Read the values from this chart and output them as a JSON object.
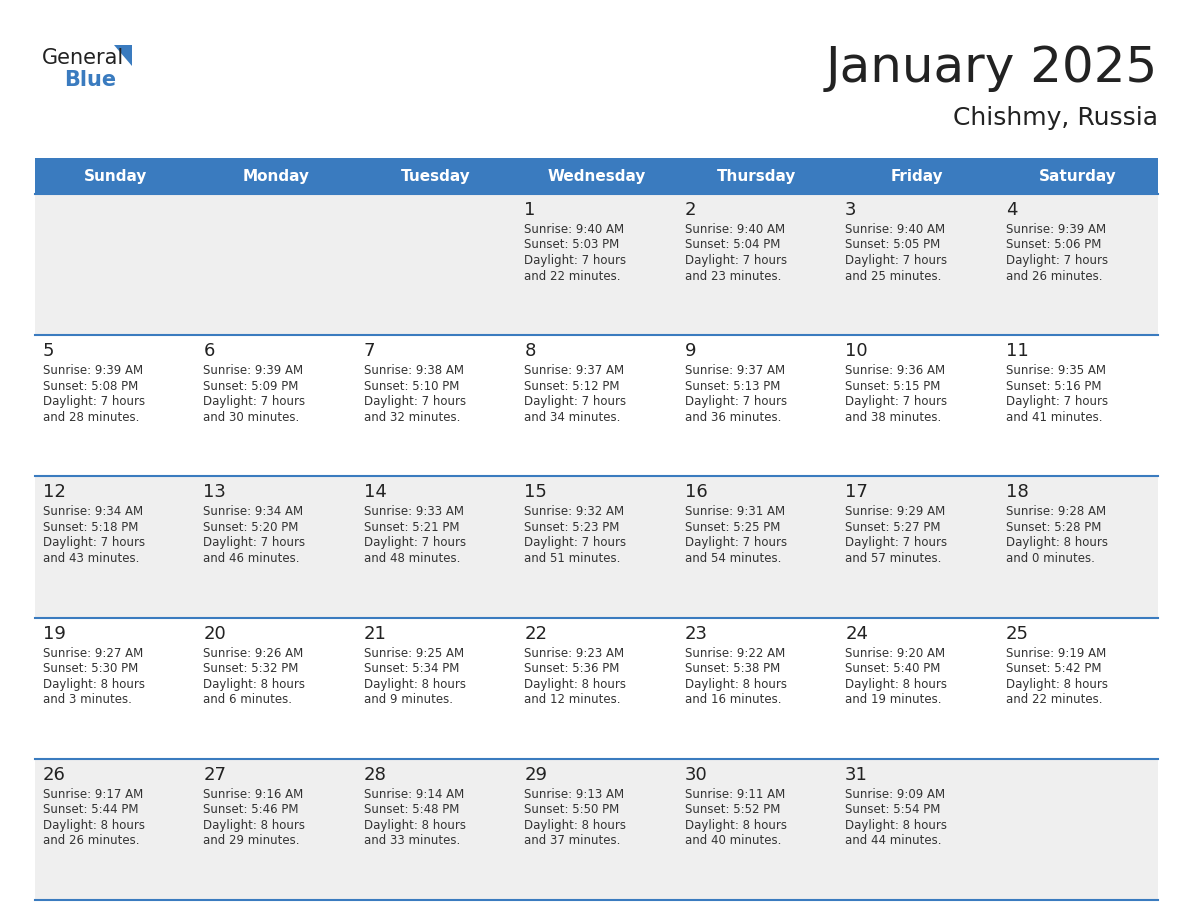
{
  "title": "January 2025",
  "subtitle": "Chishmy, Russia",
  "header_color": "#3a7bbf",
  "header_text_color": "#ffffff",
  "day_names": [
    "Sunday",
    "Monday",
    "Tuesday",
    "Wednesday",
    "Thursday",
    "Friday",
    "Saturday"
  ],
  "bg_color": "#ffffff",
  "cell_bg_even": "#efefef",
  "cell_bg_odd": "#ffffff",
  "row_line_color": "#3a7bbf",
  "text_color": "#333333",
  "day_num_color": "#222222",
  "logo_general_color": "#222222",
  "logo_blue_color": "#3a7bbf",
  "logo_triangle_color": "#3a7bbf",
  "title_fontsize": 36,
  "subtitle_fontsize": 18,
  "header_fontsize": 11,
  "daynum_fontsize": 13,
  "cell_fontsize": 8.5,
  "calendar_data": [
    [
      null,
      null,
      null,
      {
        "day": 1,
        "sunrise": "9:40 AM",
        "sunset": "5:03 PM",
        "daylight": "7 hours",
        "daylight2": "and 22 minutes."
      },
      {
        "day": 2,
        "sunrise": "9:40 AM",
        "sunset": "5:04 PM",
        "daylight": "7 hours",
        "daylight2": "and 23 minutes."
      },
      {
        "day": 3,
        "sunrise": "9:40 AM",
        "sunset": "5:05 PM",
        "daylight": "7 hours",
        "daylight2": "and 25 minutes."
      },
      {
        "day": 4,
        "sunrise": "9:39 AM",
        "sunset": "5:06 PM",
        "daylight": "7 hours",
        "daylight2": "and 26 minutes."
      }
    ],
    [
      {
        "day": 5,
        "sunrise": "9:39 AM",
        "sunset": "5:08 PM",
        "daylight": "7 hours",
        "daylight2": "and 28 minutes."
      },
      {
        "day": 6,
        "sunrise": "9:39 AM",
        "sunset": "5:09 PM",
        "daylight": "7 hours",
        "daylight2": "and 30 minutes."
      },
      {
        "day": 7,
        "sunrise": "9:38 AM",
        "sunset": "5:10 PM",
        "daylight": "7 hours",
        "daylight2": "and 32 minutes."
      },
      {
        "day": 8,
        "sunrise": "9:37 AM",
        "sunset": "5:12 PM",
        "daylight": "7 hours",
        "daylight2": "and 34 minutes."
      },
      {
        "day": 9,
        "sunrise": "9:37 AM",
        "sunset": "5:13 PM",
        "daylight": "7 hours",
        "daylight2": "and 36 minutes."
      },
      {
        "day": 10,
        "sunrise": "9:36 AM",
        "sunset": "5:15 PM",
        "daylight": "7 hours",
        "daylight2": "and 38 minutes."
      },
      {
        "day": 11,
        "sunrise": "9:35 AM",
        "sunset": "5:16 PM",
        "daylight": "7 hours",
        "daylight2": "and 41 minutes."
      }
    ],
    [
      {
        "day": 12,
        "sunrise": "9:34 AM",
        "sunset": "5:18 PM",
        "daylight": "7 hours",
        "daylight2": "and 43 minutes."
      },
      {
        "day": 13,
        "sunrise": "9:34 AM",
        "sunset": "5:20 PM",
        "daylight": "7 hours",
        "daylight2": "and 46 minutes."
      },
      {
        "day": 14,
        "sunrise": "9:33 AM",
        "sunset": "5:21 PM",
        "daylight": "7 hours",
        "daylight2": "and 48 minutes."
      },
      {
        "day": 15,
        "sunrise": "9:32 AM",
        "sunset": "5:23 PM",
        "daylight": "7 hours",
        "daylight2": "and 51 minutes."
      },
      {
        "day": 16,
        "sunrise": "9:31 AM",
        "sunset": "5:25 PM",
        "daylight": "7 hours",
        "daylight2": "and 54 minutes."
      },
      {
        "day": 17,
        "sunrise": "9:29 AM",
        "sunset": "5:27 PM",
        "daylight": "7 hours",
        "daylight2": "and 57 minutes."
      },
      {
        "day": 18,
        "sunrise": "9:28 AM",
        "sunset": "5:28 PM",
        "daylight": "8 hours",
        "daylight2": "and 0 minutes."
      }
    ],
    [
      {
        "day": 19,
        "sunrise": "9:27 AM",
        "sunset": "5:30 PM",
        "daylight": "8 hours",
        "daylight2": "and 3 minutes."
      },
      {
        "day": 20,
        "sunrise": "9:26 AM",
        "sunset": "5:32 PM",
        "daylight": "8 hours",
        "daylight2": "and 6 minutes."
      },
      {
        "day": 21,
        "sunrise": "9:25 AM",
        "sunset": "5:34 PM",
        "daylight": "8 hours",
        "daylight2": "and 9 minutes."
      },
      {
        "day": 22,
        "sunrise": "9:23 AM",
        "sunset": "5:36 PM",
        "daylight": "8 hours",
        "daylight2": "and 12 minutes."
      },
      {
        "day": 23,
        "sunrise": "9:22 AM",
        "sunset": "5:38 PM",
        "daylight": "8 hours",
        "daylight2": "and 16 minutes."
      },
      {
        "day": 24,
        "sunrise": "9:20 AM",
        "sunset": "5:40 PM",
        "daylight": "8 hours",
        "daylight2": "and 19 minutes."
      },
      {
        "day": 25,
        "sunrise": "9:19 AM",
        "sunset": "5:42 PM",
        "daylight": "8 hours",
        "daylight2": "and 22 minutes."
      }
    ],
    [
      {
        "day": 26,
        "sunrise": "9:17 AM",
        "sunset": "5:44 PM",
        "daylight": "8 hours",
        "daylight2": "and 26 minutes."
      },
      {
        "day": 27,
        "sunrise": "9:16 AM",
        "sunset": "5:46 PM",
        "daylight": "8 hours",
        "daylight2": "and 29 minutes."
      },
      {
        "day": 28,
        "sunrise": "9:14 AM",
        "sunset": "5:48 PM",
        "daylight": "8 hours",
        "daylight2": "and 33 minutes."
      },
      {
        "day": 29,
        "sunrise": "9:13 AM",
        "sunset": "5:50 PM",
        "daylight": "8 hours",
        "daylight2": "and 37 minutes."
      },
      {
        "day": 30,
        "sunrise": "9:11 AM",
        "sunset": "5:52 PM",
        "daylight": "8 hours",
        "daylight2": "and 40 minutes."
      },
      {
        "day": 31,
        "sunrise": "9:09 AM",
        "sunset": "5:54 PM",
        "daylight": "8 hours",
        "daylight2": "and 44 minutes."
      },
      null
    ]
  ]
}
